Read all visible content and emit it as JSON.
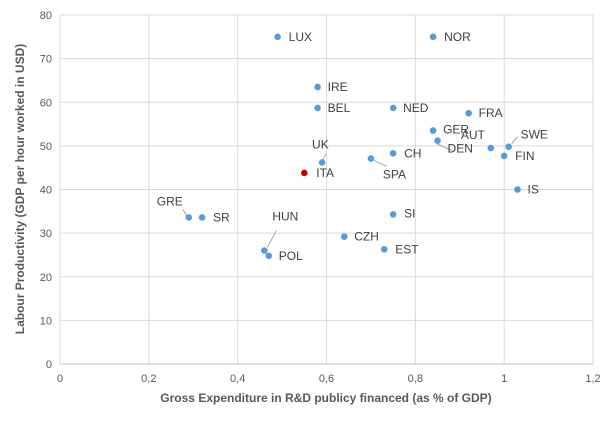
{
  "chart_data": {
    "type": "scatter",
    "title": "",
    "xlabel": "Gross  Expenditure in R&D publicy financed (as % of GDP)",
    "ylabel": "Labour Productivity (GDP per hour worked in USD)",
    "xlim": [
      0,
      1.2
    ],
    "ylim": [
      0,
      80
    ],
    "x_ticks": [
      "0",
      "0,2",
      "0,4",
      "0,6",
      "0,8",
      "1",
      "1,2"
    ],
    "y_ticks": [
      "0",
      "10",
      "20",
      "30",
      "40",
      "50",
      "60",
      "70",
      "80"
    ],
    "grid": true,
    "point_color": "#5B9BD5",
    "highlight_color": "#C00000",
    "points": [
      {
        "label": "LUX",
        "x": 0.49,
        "y": 75.0
      },
      {
        "label": "NOR",
        "x": 0.84,
        "y": 75.0
      },
      {
        "label": "IRE",
        "x": 0.58,
        "y": 63.5
      },
      {
        "label": "BEL",
        "x": 0.58,
        "y": 58.7
      },
      {
        "label": "NED",
        "x": 0.75,
        "y": 58.7
      },
      {
        "label": "FRA",
        "x": 0.92,
        "y": 57.5
      },
      {
        "label": "GER",
        "x": 0.84,
        "y": 53.5
      },
      {
        "label": "DEN",
        "x": 0.85,
        "y": 51.2
      },
      {
        "label": "AUT",
        "x": 0.97,
        "y": 49.5
      },
      {
        "label": "SWE",
        "x": 1.01,
        "y": 49.8
      },
      {
        "label": "FIN",
        "x": 1.0,
        "y": 47.7
      },
      {
        "label": "UK",
        "x": 0.59,
        "y": 46.2
      },
      {
        "label": "CH",
        "x": 0.75,
        "y": 48.3
      },
      {
        "label": "SPA",
        "x": 0.7,
        "y": 47.1
      },
      {
        "label": "ITA",
        "x": 0.55,
        "y": 43.8,
        "highlight": true
      },
      {
        "label": "IS",
        "x": 1.03,
        "y": 40.0
      },
      {
        "label": "GRE",
        "x": 0.29,
        "y": 33.6
      },
      {
        "label": "SR",
        "x": 0.32,
        "y": 33.6
      },
      {
        "label": "SI",
        "x": 0.75,
        "y": 34.3
      },
      {
        "label": "CZH",
        "x": 0.64,
        "y": 29.2
      },
      {
        "label": "EST",
        "x": 0.73,
        "y": 26.3
      },
      {
        "label": "HUN",
        "x": 0.46,
        "y": 26.0
      },
      {
        "label": "POL",
        "x": 0.47,
        "y": 24.8
      }
    ]
  }
}
